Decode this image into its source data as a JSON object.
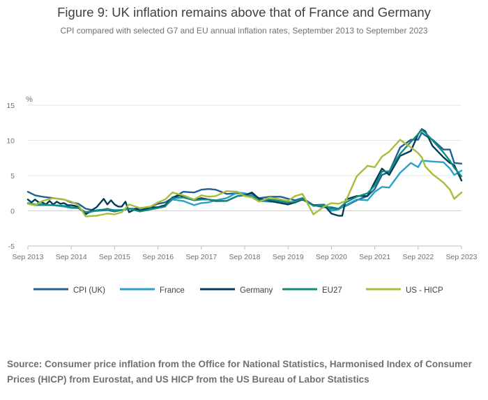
{
  "chart_data": {
    "type": "line",
    "title": "Figure 9: UK inflation remains above that of France and Germany",
    "subtitle": "CPI compared with selected G7 and EU annual inflation rates, September 2013 to September 2023",
    "ylabel": "%",
    "xlabel": "",
    "ylim": [
      -5,
      15
    ],
    "yticks": [
      -5,
      0,
      5,
      10,
      15
    ],
    "x_start": 2013.667,
    "x_end": 2023.667,
    "xticks": [
      "Sep 2013",
      "Sep 2014",
      "Sep 2015",
      "Sep 2016",
      "Sep 2017",
      "Sep 2018",
      "Sep 2019",
      "Sep 2020",
      "Sep 2021",
      "Sep 2022",
      "Sep 2023"
    ],
    "grid": true,
    "legend_position": "bottom",
    "series": [
      {
        "name": "CPI (UK)",
        "color": "#206095",
        "points": [
          [
            2013.667,
            2.7
          ],
          [
            2013.833,
            2.2
          ],
          [
            2014.0,
            2.0
          ],
          [
            2014.25,
            1.8
          ],
          [
            2014.5,
            1.6
          ],
          [
            2014.667,
            1.2
          ],
          [
            2014.833,
            1.0
          ],
          [
            2015.0,
            0.3
          ],
          [
            2015.25,
            0.0
          ],
          [
            2015.5,
            0.1
          ],
          [
            2015.667,
            -0.1
          ],
          [
            2015.833,
            0.1
          ],
          [
            2016.0,
            0.3
          ],
          [
            2016.25,
            0.3
          ],
          [
            2016.5,
            0.6
          ],
          [
            2016.667,
            1.0
          ],
          [
            2016.833,
            1.2
          ],
          [
            2017.0,
            1.8
          ],
          [
            2017.25,
            2.7
          ],
          [
            2017.5,
            2.6
          ],
          [
            2017.667,
            3.0
          ],
          [
            2017.833,
            3.1
          ],
          [
            2018.0,
            3.0
          ],
          [
            2018.25,
            2.4
          ],
          [
            2018.5,
            2.5
          ],
          [
            2018.667,
            2.4
          ],
          [
            2018.833,
            2.3
          ],
          [
            2019.0,
            1.8
          ],
          [
            2019.25,
            2.0
          ],
          [
            2019.5,
            2.0
          ],
          [
            2019.667,
            1.7
          ],
          [
            2019.833,
            1.5
          ],
          [
            2020.0,
            1.8
          ],
          [
            2020.25,
            0.8
          ],
          [
            2020.5,
            0.5
          ],
          [
            2020.667,
            0.5
          ],
          [
            2020.833,
            0.3
          ],
          [
            2021.0,
            0.7
          ],
          [
            2021.25,
            1.5
          ],
          [
            2021.5,
            2.1
          ],
          [
            2021.667,
            3.1
          ],
          [
            2021.833,
            5.1
          ],
          [
            2022.0,
            5.5
          ],
          [
            2022.25,
            9.0
          ],
          [
            2022.5,
            10.1
          ],
          [
            2022.667,
            10.1
          ],
          [
            2022.75,
            11.1
          ],
          [
            2022.833,
            10.7
          ],
          [
            2023.0,
            10.1
          ],
          [
            2023.25,
            8.7
          ],
          [
            2023.4,
            8.7
          ],
          [
            2023.5,
            6.8
          ],
          [
            2023.667,
            6.7
          ]
        ]
      },
      {
        "name": "France",
        "color": "#27a0cc",
        "points": [
          [
            2013.667,
            1.0
          ],
          [
            2013.833,
            0.8
          ],
          [
            2014.0,
            0.8
          ],
          [
            2014.25,
            0.8
          ],
          [
            2014.5,
            0.6
          ],
          [
            2014.667,
            0.4
          ],
          [
            2014.833,
            0.4
          ],
          [
            2015.0,
            -0.4
          ],
          [
            2015.25,
            0.1
          ],
          [
            2015.5,
            0.2
          ],
          [
            2015.667,
            0.1
          ],
          [
            2015.833,
            0.1
          ],
          [
            2016.0,
            0.3
          ],
          [
            2016.25,
            0.1
          ],
          [
            2016.5,
            0.4
          ],
          [
            2016.667,
            0.5
          ],
          [
            2016.833,
            0.7
          ],
          [
            2017.0,
            1.6
          ],
          [
            2017.25,
            1.4
          ],
          [
            2017.5,
            0.8
          ],
          [
            2017.667,
            1.1
          ],
          [
            2017.833,
            1.2
          ],
          [
            2018.0,
            1.5
          ],
          [
            2018.25,
            1.8
          ],
          [
            2018.5,
            2.6
          ],
          [
            2018.667,
            2.5
          ],
          [
            2018.833,
            2.2
          ],
          [
            2019.0,
            1.4
          ],
          [
            2019.25,
            1.3
          ],
          [
            2019.5,
            1.3
          ],
          [
            2019.667,
            1.1
          ],
          [
            2019.833,
            1.2
          ],
          [
            2020.0,
            1.7
          ],
          [
            2020.25,
            0.8
          ],
          [
            2020.5,
            0.9
          ],
          [
            2020.667,
            0.0
          ],
          [
            2020.833,
            0.2
          ],
          [
            2021.0,
            0.8
          ],
          [
            2021.25,
            1.6
          ],
          [
            2021.5,
            1.5
          ],
          [
            2021.667,
            2.7
          ],
          [
            2021.833,
            3.4
          ],
          [
            2022.0,
            3.3
          ],
          [
            2022.25,
            5.4
          ],
          [
            2022.5,
            6.8
          ],
          [
            2022.667,
            6.2
          ],
          [
            2022.75,
            7.1
          ],
          [
            2022.833,
            7.1
          ],
          [
            2023.0,
            7.0
          ],
          [
            2023.25,
            6.9
          ],
          [
            2023.4,
            6.0
          ],
          [
            2023.5,
            5.1
          ],
          [
            2023.667,
            5.7
          ]
        ]
      },
      {
        "name": "Germany",
        "color": "#003c57",
        "points": [
          [
            2013.667,
            1.6
          ],
          [
            2013.75,
            1.2
          ],
          [
            2013.833,
            1.6
          ],
          [
            2013.917,
            1.2
          ],
          [
            2014.0,
            1.2
          ],
          [
            2014.083,
            0.9
          ],
          [
            2014.167,
            1.4
          ],
          [
            2014.25,
            0.9
          ],
          [
            2014.333,
            1.3
          ],
          [
            2014.417,
            1.0
          ],
          [
            2014.5,
            1.1
          ],
          [
            2014.583,
            0.8
          ],
          [
            2014.667,
            0.8
          ],
          [
            2014.75,
            0.7
          ],
          [
            2014.833,
            0.5
          ],
          [
            2015.0,
            -0.5
          ],
          [
            2015.167,
            0.2
          ],
          [
            2015.25,
            0.5
          ],
          [
            2015.417,
            1.7
          ],
          [
            2015.5,
            0.9
          ],
          [
            2015.583,
            1.5
          ],
          [
            2015.667,
            0.9
          ],
          [
            2015.75,
            0.6
          ],
          [
            2015.833,
            0.6
          ],
          [
            2015.917,
            1.3
          ],
          [
            2016.0,
            -0.2
          ],
          [
            2016.167,
            0.3
          ],
          [
            2016.25,
            0.0
          ],
          [
            2016.5,
            0.5
          ],
          [
            2016.667,
            0.5
          ],
          [
            2016.833,
            0.8
          ],
          [
            2017.0,
            1.9
          ],
          [
            2017.167,
            2.2
          ],
          [
            2017.25,
            2.0
          ],
          [
            2017.5,
            1.5
          ],
          [
            2017.667,
            1.8
          ],
          [
            2017.833,
            1.6
          ],
          [
            2018.0,
            1.4
          ],
          [
            2018.25,
            1.4
          ],
          [
            2018.5,
            2.1
          ],
          [
            2018.667,
            2.2
          ],
          [
            2018.833,
            2.6
          ],
          [
            2019.0,
            1.7
          ],
          [
            2019.25,
            1.4
          ],
          [
            2019.5,
            1.1
          ],
          [
            2019.667,
            0.9
          ],
          [
            2019.833,
            1.2
          ],
          [
            2020.0,
            1.6
          ],
          [
            2020.25,
            0.8
          ],
          [
            2020.5,
            0.8
          ],
          [
            2020.667,
            -0.4
          ],
          [
            2020.833,
            -0.7
          ],
          [
            2020.917,
            -0.7
          ],
          [
            2021.0,
            1.6
          ],
          [
            2021.25,
            2.1
          ],
          [
            2021.5,
            2.1
          ],
          [
            2021.667,
            4.1
          ],
          [
            2021.833,
            6.0
          ],
          [
            2022.0,
            5.1
          ],
          [
            2022.25,
            7.8
          ],
          [
            2022.5,
            8.5
          ],
          [
            2022.667,
            10.9
          ],
          [
            2022.75,
            11.6
          ],
          [
            2022.833,
            11.3
          ],
          [
            2023.0,
            9.2
          ],
          [
            2023.25,
            7.6
          ],
          [
            2023.4,
            6.8
          ],
          [
            2023.5,
            6.5
          ],
          [
            2023.667,
            4.3
          ]
        ]
      },
      {
        "name": "EU27",
        "color": "#118c7b",
        "points": [
          [
            2013.667,
            1.1
          ],
          [
            2013.833,
            0.9
          ],
          [
            2014.0,
            0.9
          ],
          [
            2014.25,
            0.8
          ],
          [
            2014.5,
            0.7
          ],
          [
            2014.667,
            0.5
          ],
          [
            2014.833,
            0.4
          ],
          [
            2015.0,
            -0.2
          ],
          [
            2015.25,
            0.0
          ],
          [
            2015.5,
            0.3
          ],
          [
            2015.667,
            0.0
          ],
          [
            2015.833,
            0.1
          ],
          [
            2016.0,
            0.3
          ],
          [
            2016.25,
            -0.1
          ],
          [
            2016.5,
            0.2
          ],
          [
            2016.667,
            0.4
          ],
          [
            2016.833,
            0.6
          ],
          [
            2017.0,
            1.8
          ],
          [
            2017.25,
            1.9
          ],
          [
            2017.5,
            1.5
          ],
          [
            2017.667,
            1.6
          ],
          [
            2017.833,
            1.6
          ],
          [
            2018.0,
            1.5
          ],
          [
            2018.25,
            1.4
          ],
          [
            2018.5,
            2.1
          ],
          [
            2018.667,
            2.2
          ],
          [
            2018.833,
            2.0
          ],
          [
            2019.0,
            1.5
          ],
          [
            2019.25,
            1.6
          ],
          [
            2019.5,
            1.4
          ],
          [
            2019.667,
            1.2
          ],
          [
            2019.833,
            1.3
          ],
          [
            2020.0,
            1.7
          ],
          [
            2020.25,
            0.7
          ],
          [
            2020.5,
            0.8
          ],
          [
            2020.667,
            0.3
          ],
          [
            2020.833,
            0.3
          ],
          [
            2021.0,
            1.2
          ],
          [
            2021.25,
            2.0
          ],
          [
            2021.5,
            2.5
          ],
          [
            2021.667,
            3.6
          ],
          [
            2021.833,
            5.6
          ],
          [
            2022.0,
            5.6
          ],
          [
            2022.25,
            8.1
          ],
          [
            2022.5,
            9.8
          ],
          [
            2022.667,
            10.9
          ],
          [
            2022.75,
            11.5
          ],
          [
            2022.833,
            11.1
          ],
          [
            2023.0,
            10.0
          ],
          [
            2023.25,
            8.3
          ],
          [
            2023.4,
            7.1
          ],
          [
            2023.5,
            6.1
          ],
          [
            2023.667,
            4.9
          ]
        ]
      },
      {
        "name": "US - HICP",
        "color": "#a8bd3a",
        "points": [
          [
            2013.667,
            1.0
          ],
          [
            2013.833,
            0.8
          ],
          [
            2014.0,
            1.4
          ],
          [
            2014.25,
            1.8
          ],
          [
            2014.5,
            1.6
          ],
          [
            2014.667,
            1.3
          ],
          [
            2014.833,
            0.8
          ],
          [
            2015.0,
            -0.8
          ],
          [
            2015.25,
            -0.7
          ],
          [
            2015.5,
            -0.4
          ],
          [
            2015.667,
            -0.5
          ],
          [
            2015.833,
            -0.2
          ],
          [
            2016.0,
            0.9
          ],
          [
            2016.25,
            0.4
          ],
          [
            2016.5,
            0.6
          ],
          [
            2016.667,
            1.2
          ],
          [
            2016.833,
            1.6
          ],
          [
            2017.0,
            2.6
          ],
          [
            2017.25,
            2.2
          ],
          [
            2017.5,
            1.6
          ],
          [
            2017.667,
            2.2
          ],
          [
            2017.833,
            2.0
          ],
          [
            2018.0,
            2.1
          ],
          [
            2018.25,
            2.8
          ],
          [
            2018.5,
            2.7
          ],
          [
            2018.667,
            2.1
          ],
          [
            2018.833,
            1.9
          ],
          [
            2019.0,
            1.3
          ],
          [
            2019.25,
            1.9
          ],
          [
            2019.5,
            1.6
          ],
          [
            2019.667,
            1.4
          ],
          [
            2019.833,
            2.1
          ],
          [
            2020.0,
            2.4
          ],
          [
            2020.25,
            -0.5
          ],
          [
            2020.5,
            0.6
          ],
          [
            2020.667,
            1.1
          ],
          [
            2020.833,
            1.0
          ],
          [
            2021.0,
            1.4
          ],
          [
            2021.25,
            4.9
          ],
          [
            2021.5,
            6.4
          ],
          [
            2021.667,
            6.2
          ],
          [
            2021.833,
            7.7
          ],
          [
            2022.0,
            8.4
          ],
          [
            2022.25,
            10.1
          ],
          [
            2022.5,
            9.0
          ],
          [
            2022.667,
            8.2
          ],
          [
            2022.75,
            7.6
          ],
          [
            2022.833,
            6.3
          ],
          [
            2023.0,
            5.2
          ],
          [
            2023.25,
            4.0
          ],
          [
            2023.4,
            3.0
          ],
          [
            2023.5,
            1.7
          ],
          [
            2023.667,
            2.6
          ]
        ]
      }
    ]
  },
  "source_text": "Source: Consumer price inflation from the Office for National Statistics, Harmonised Index of Consumer Prices (HICP) from Eurostat, and US HICP from the US Bureau of Labor Statistics"
}
